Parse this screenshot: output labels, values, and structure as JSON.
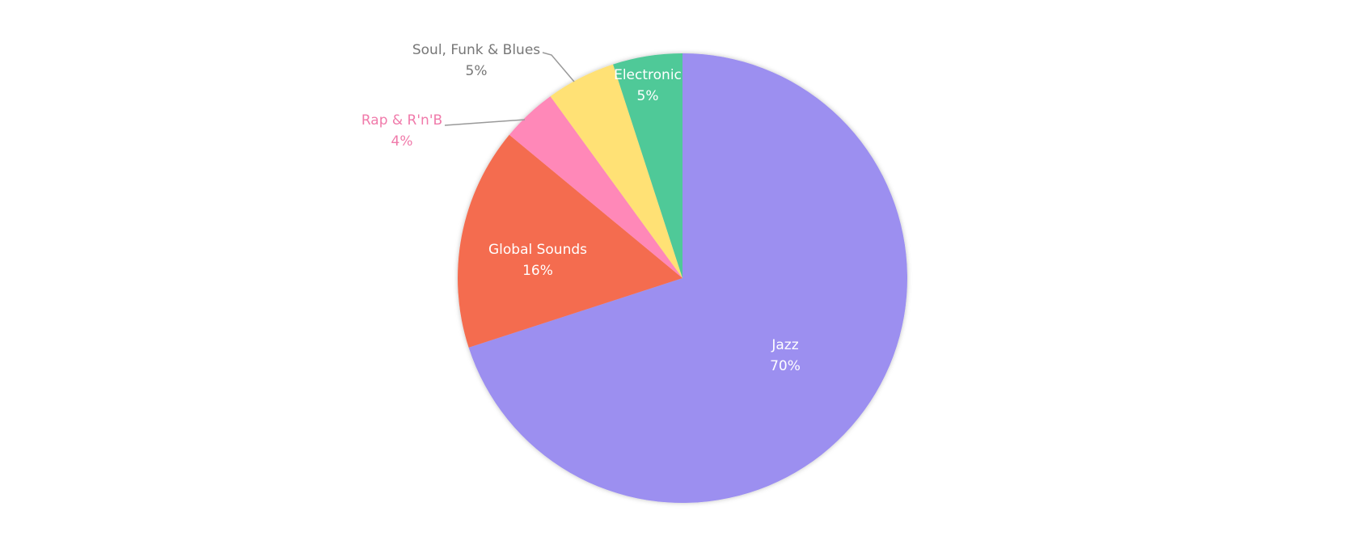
{
  "chart_data": {
    "type": "pie",
    "categories": [
      "Jazz",
      "Global Sounds",
      "Rap & R'n'B",
      "Soul, Funk & Blues",
      "Electronic"
    ],
    "values": [
      70,
      16,
      4,
      5,
      5
    ],
    "value_labels": [
      "70%",
      "16%",
      "4%",
      "5%",
      "5%"
    ],
    "colors": [
      "#9c8ff0",
      "#f46c4f",
      "#ff88b8",
      "#ffe175",
      "#50c998"
    ]
  }
}
